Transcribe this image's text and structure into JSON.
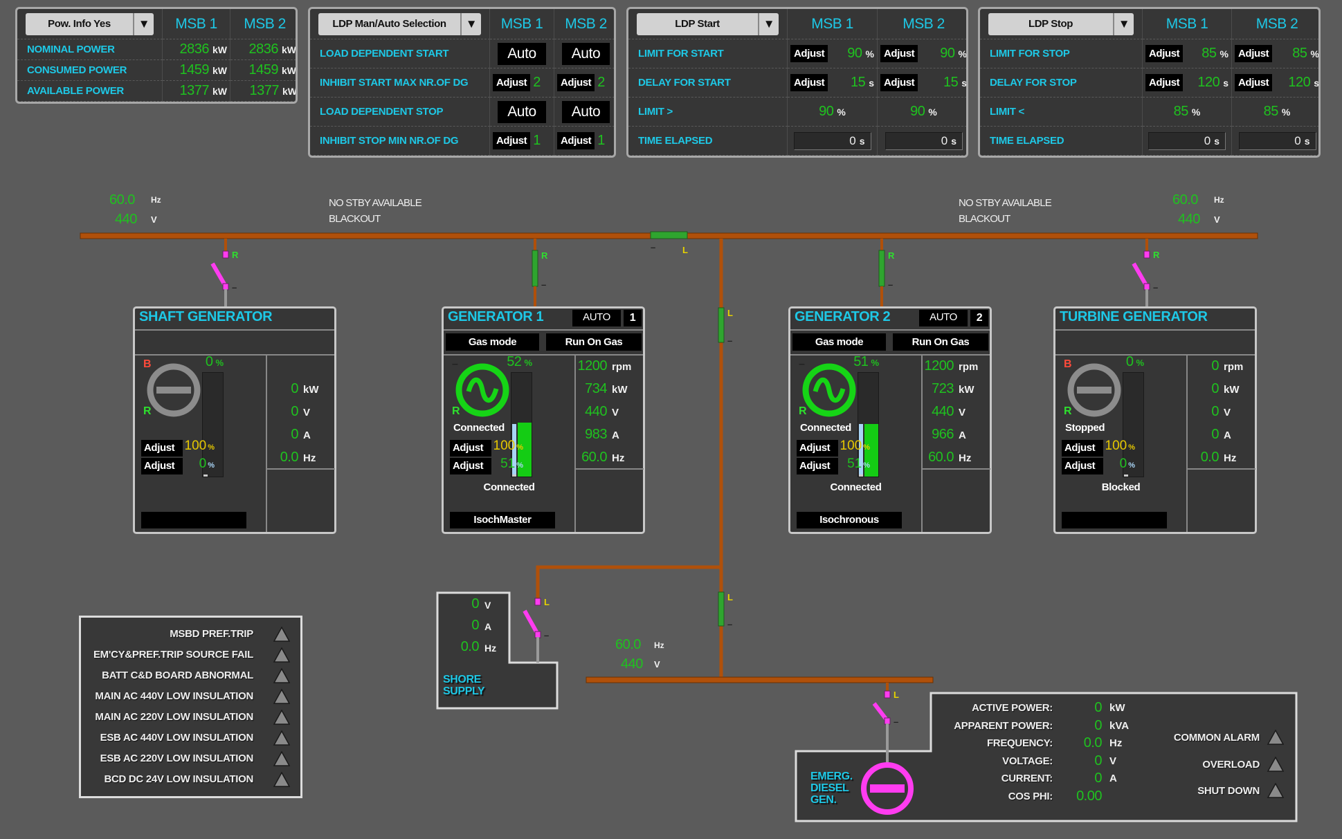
{
  "colors": {
    "accent": "#1ec8e6",
    "value": "#1fc21f",
    "bus": "#b0500a",
    "open_breaker": "#ff3cf0",
    "closed_breaker": "#2fa52f",
    "setpoint": "#e6c800"
  },
  "common": {
    "adjust_label": "Adjust",
    "col_headers": [
      "MSB 1",
      "MSB 2"
    ]
  },
  "panels": [
    {
      "dropdown": "Pow. Info Yes",
      "rows": [
        {
          "label": "NOMINAL POWER",
          "kind": "value",
          "cells": [
            {
              "value": "2836",
              "unit": "kW"
            },
            {
              "value": "2836",
              "unit": "kW"
            }
          ]
        },
        {
          "label": "CONSUMED  POWER",
          "kind": "value",
          "cells": [
            {
              "value": "1459",
              "unit": "kW"
            },
            {
              "value": "1459",
              "unit": "kW"
            }
          ]
        },
        {
          "label": "AVAILABLE POWER",
          "kind": "value",
          "cells": [
            {
              "value": "1377",
              "unit": "kW"
            },
            {
              "value": "1377",
              "unit": "kW"
            }
          ]
        }
      ]
    },
    {
      "dropdown": "LDP Man/Auto Selection",
      "rows": [
        {
          "label": "LOAD DEPENDENT START",
          "kind": "mode",
          "cells": [
            {
              "value": "Auto"
            },
            {
              "value": "Auto"
            }
          ]
        },
        {
          "label": "INHIBIT START MAX NR.OF DG",
          "kind": "adjust",
          "cells": [
            {
              "value": "2",
              "unit": ""
            },
            {
              "value": "2",
              "unit": ""
            }
          ]
        },
        {
          "label": "LOAD DEPENDENT STOP",
          "kind": "mode",
          "cells": [
            {
              "value": "Auto"
            },
            {
              "value": "Auto"
            }
          ]
        },
        {
          "label": "INHIBIT STOP MIN NR.OF DG",
          "kind": "adjust",
          "cells": [
            {
              "value": "1",
              "unit": ""
            },
            {
              "value": "1",
              "unit": ""
            }
          ]
        }
      ]
    },
    {
      "dropdown": "LDP Start",
      "rows": [
        {
          "label": "LIMIT FOR START",
          "kind": "adjust",
          "cells": [
            {
              "value": "90",
              "unit": "%"
            },
            {
              "value": "90",
              "unit": "%"
            }
          ]
        },
        {
          "label": "DELAY FOR START",
          "kind": "adjust",
          "cells": [
            {
              "value": "15",
              "unit": "s"
            },
            {
              "value": "15",
              "unit": "s"
            }
          ]
        },
        {
          "label": "LIMIT >",
          "kind": "centered",
          "cells": [
            {
              "value": "90",
              "unit": "%"
            },
            {
              "value": "90",
              "unit": "%"
            }
          ]
        },
        {
          "label": "TIME ELAPSED",
          "kind": "elapsed",
          "cells": [
            {
              "value": "0",
              "unit": "s"
            },
            {
              "value": "0",
              "unit": "s"
            }
          ]
        }
      ]
    },
    {
      "dropdown": "LDP Stop",
      "rows": [
        {
          "label": "LIMIT FOR STOP",
          "kind": "adjust",
          "cells": [
            {
              "value": "85",
              "unit": "%"
            },
            {
              "value": "85",
              "unit": "%"
            }
          ]
        },
        {
          "label": "DELAY FOR STOP",
          "kind": "adjust",
          "cells": [
            {
              "value": "120",
              "unit": "s"
            },
            {
              "value": "120",
              "unit": "s"
            }
          ]
        },
        {
          "label": "LIMIT <",
          "kind": "centered",
          "cells": [
            {
              "value": "85",
              "unit": "%"
            },
            {
              "value": "85",
              "unit": "%"
            }
          ]
        },
        {
          "label": "TIME ELAPSED",
          "kind": "elapsed",
          "cells": [
            {
              "value": "0",
              "unit": "s"
            },
            {
              "value": "0",
              "unit": "s"
            }
          ]
        }
      ]
    }
  ],
  "bus": {
    "left": {
      "freq": "60.0",
      "freq_unit": "Hz",
      "volt": "440",
      "volt_unit": "V",
      "msg1": "NO STBY AVAILABLE",
      "msg2": "BLACKOUT"
    },
    "right": {
      "freq": "60.0",
      "freq_unit": "Hz",
      "volt": "440",
      "volt_unit": "V",
      "msg1": "NO STBY AVAILABLE",
      "msg2": "BLACKOUT"
    },
    "emergency": {
      "freq": "60.0",
      "freq_unit": "Hz",
      "volt": "440",
      "volt_unit": "V"
    },
    "labels": {
      "remote": "R",
      "local": "L",
      "dash": "–"
    }
  },
  "generators": [
    {
      "title": "SHAFT GENERATOR",
      "mode": "",
      "number": "",
      "gas_mode": "",
      "run_mode": "",
      "running": false,
      "breaker_closed": false,
      "flag_top": "B",
      "flag_bottom": "R",
      "load_pct": "0",
      "pct_unit": "%",
      "load_fraction": 0,
      "setpoint_fraction": 0,
      "status_upper": "",
      "adjust": [
        {
          "value": "100",
          "unit": "%"
        },
        {
          "value": "0",
          "unit": "%"
        }
      ],
      "status_lower": "",
      "control": "",
      "readings": [
        {
          "value": "0",
          "unit": "kW"
        },
        {
          "value": "0",
          "unit": "V"
        },
        {
          "value": "0",
          "unit": "A"
        },
        {
          "value": "0.0",
          "unit": "Hz"
        }
      ]
    },
    {
      "title": "GENERATOR 1",
      "mode": "AUTO",
      "number": "1",
      "gas_mode": "Gas mode",
      "run_mode": "Run On Gas",
      "running": true,
      "breaker_closed": true,
      "flag_top": "–",
      "flag_bottom": "R",
      "load_pct": "52",
      "pct_unit": "%",
      "load_fraction": 0.52,
      "setpoint_fraction": 0.51,
      "status_upper": "Connected",
      "adjust": [
        {
          "value": "100",
          "unit": "%"
        },
        {
          "value": "51",
          "unit": "%"
        }
      ],
      "status_lower": "Connected",
      "control": "IsochMaster",
      "readings": [
        {
          "value": "1200",
          "unit": "rpm"
        },
        {
          "value": "734",
          "unit": "kW"
        },
        {
          "value": "440",
          "unit": "V"
        },
        {
          "value": "983",
          "unit": "A"
        },
        {
          "value": "60.0",
          "unit": "Hz"
        }
      ]
    },
    {
      "title": "GENERATOR 2",
      "mode": "AUTO",
      "number": "2",
      "gas_mode": "Gas mode",
      "run_mode": "Run On Gas",
      "running": true,
      "breaker_closed": true,
      "flag_top": "–",
      "flag_bottom": "R",
      "load_pct": "51",
      "pct_unit": "%",
      "load_fraction": 0.51,
      "setpoint_fraction": 0.51,
      "status_upper": "Connected",
      "adjust": [
        {
          "value": "100",
          "unit": "%"
        },
        {
          "value": "51",
          "unit": "%"
        }
      ],
      "status_lower": "Connected",
      "control": "Isochronous",
      "readings": [
        {
          "value": "1200",
          "unit": "rpm"
        },
        {
          "value": "723",
          "unit": "kW"
        },
        {
          "value": "440",
          "unit": "V"
        },
        {
          "value": "966",
          "unit": "A"
        },
        {
          "value": "60.0",
          "unit": "Hz"
        }
      ]
    },
    {
      "title": "TURBINE GENERATOR",
      "mode": "",
      "number": "",
      "gas_mode": "",
      "run_mode": "",
      "running": false,
      "breaker_closed": false,
      "flag_top": "B",
      "flag_bottom": "R",
      "load_pct": "0",
      "pct_unit": "%",
      "load_fraction": 0,
      "setpoint_fraction": 0,
      "status_upper": "Stopped",
      "adjust": [
        {
          "value": "100",
          "unit": "%"
        },
        {
          "value": "0",
          "unit": "%"
        }
      ],
      "status_lower": "Blocked",
      "control": "",
      "readings": [
        {
          "value": "0",
          "unit": "rpm"
        },
        {
          "value": "0",
          "unit": "kW"
        },
        {
          "value": "0",
          "unit": "V"
        },
        {
          "value": "0",
          "unit": "A"
        },
        {
          "value": "0.0",
          "unit": "Hz"
        }
      ]
    }
  ],
  "shore": {
    "title_line1": "SHORE",
    "title_line2": "SUPPLY",
    "readings": [
      {
        "value": "0",
        "unit": "V"
      },
      {
        "value": "0",
        "unit": "A"
      },
      {
        "value": "0.0",
        "unit": "Hz"
      }
    ]
  },
  "alarms": [
    {
      "label": "MSBD PREF.TRIP",
      "active": false
    },
    {
      "label": "EM'CY&PREF.TRIP SOURCE FAIL",
      "active": false
    },
    {
      "label": "BATT C&D BOARD ABNORMAL",
      "active": false
    },
    {
      "label": "MAIN AC 440V LOW INSULATION",
      "active": false
    },
    {
      "label": "MAIN AC 220V LOW INSULATION",
      "active": false
    },
    {
      "label": "ESB AC 440V LOW INSULATION",
      "active": false
    },
    {
      "label": "ESB AC 220V LOW INSULATION",
      "active": false
    },
    {
      "label": "BCD DC 24V LOW INSULATION",
      "active": false
    }
  ],
  "emergency": {
    "title_lines": [
      "EMERG.",
      "DIESEL",
      "GEN."
    ],
    "readings": [
      {
        "label": "ACTIVE POWER:",
        "value": "0",
        "unit": "kW"
      },
      {
        "label": "APPARENT POWER:",
        "value": "0",
        "unit": "kVA"
      },
      {
        "label": "FREQUENCY:",
        "value": "0.0",
        "unit": "Hz"
      },
      {
        "label": "VOLTAGE:",
        "value": "0",
        "unit": "V"
      },
      {
        "label": "CURRENT:",
        "value": "0",
        "unit": "A"
      },
      {
        "label": "COS PHI:",
        "value": "0.00",
        "unit": ""
      }
    ],
    "alarms": [
      {
        "label": "COMMON ALARM",
        "active": false
      },
      {
        "label": "OVERLOAD",
        "active": false
      },
      {
        "label": "SHUT DOWN",
        "active": false
      }
    ]
  }
}
